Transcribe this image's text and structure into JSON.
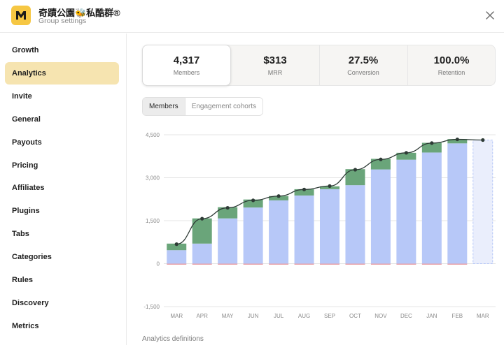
{
  "header": {
    "title": "奇蹟公園🐝私酷群®",
    "subtitle": "Group settings",
    "logo_icon": "m-logo",
    "logo_color": "#f6c743"
  },
  "sidebar": {
    "items": [
      {
        "label": "Growth",
        "active": false
      },
      {
        "label": "Analytics",
        "active": true
      },
      {
        "label": "Invite",
        "active": false
      },
      {
        "label": "General",
        "active": false
      },
      {
        "label": "Payouts",
        "active": false
      },
      {
        "label": "Pricing",
        "active": false
      },
      {
        "label": "Affiliates",
        "active": false
      },
      {
        "label": "Plugins",
        "active": false
      },
      {
        "label": "Tabs",
        "active": false
      },
      {
        "label": "Categories",
        "active": false
      },
      {
        "label": "Rules",
        "active": false
      },
      {
        "label": "Discovery",
        "active": false
      },
      {
        "label": "Metrics",
        "active": false
      }
    ]
  },
  "stats": [
    {
      "value": "4,317",
      "label": "Members",
      "active": true
    },
    {
      "value": "$313",
      "label": "MRR",
      "active": false
    },
    {
      "value": "27.5%",
      "label": "Conversion",
      "active": false
    },
    {
      "value": "100.0%",
      "label": "Retention",
      "active": false
    }
  ],
  "tabs": [
    {
      "label": "Members",
      "active": true
    },
    {
      "label": "Engagement cohorts",
      "active": false
    }
  ],
  "footer": {
    "definitions_link": "Analytics definitions"
  },
  "chart_data": {
    "type": "bar",
    "categories": [
      "MAR",
      "APR",
      "MAY",
      "JUN",
      "JUL",
      "AUG",
      "SEP",
      "OCT",
      "NOV",
      "DEC",
      "JAN",
      "FEB",
      "MAR"
    ],
    "series": [
      {
        "values": [
          470,
          700,
          1580,
          1960,
          2210,
          2380,
          2600,
          2740,
          3290,
          3630,
          3880,
          4200,
          4317
        ],
        "color": "#b7c8f8"
      },
      {
        "values": [
          230,
          880,
          390,
          280,
          150,
          220,
          100,
          560,
          370,
          240,
          340,
          150,
          0
        ],
        "color": "#6aa57a"
      },
      {
        "values": [
          -20,
          -10,
          -20,
          -15,
          -10,
          -25,
          -10,
          -30,
          -15,
          -10,
          -15,
          -20,
          0
        ],
        "color": "#e8a0a8"
      }
    ],
    "line": {
      "values": [
        680,
        1570,
        1950,
        2210,
        2360,
        2590,
        2710,
        3280,
        3640,
        3870,
        4210,
        4340,
        4317
      ],
      "color": "#2e3b36"
    },
    "last_bar_projected": true,
    "ylim": [
      -1500,
      4500
    ],
    "yticks": [
      "4,500",
      "3,000",
      "1,500",
      "0",
      "-1,500"
    ],
    "ytick_values": [
      4500,
      3000,
      1500,
      0,
      -1500
    ],
    "grid": true
  }
}
